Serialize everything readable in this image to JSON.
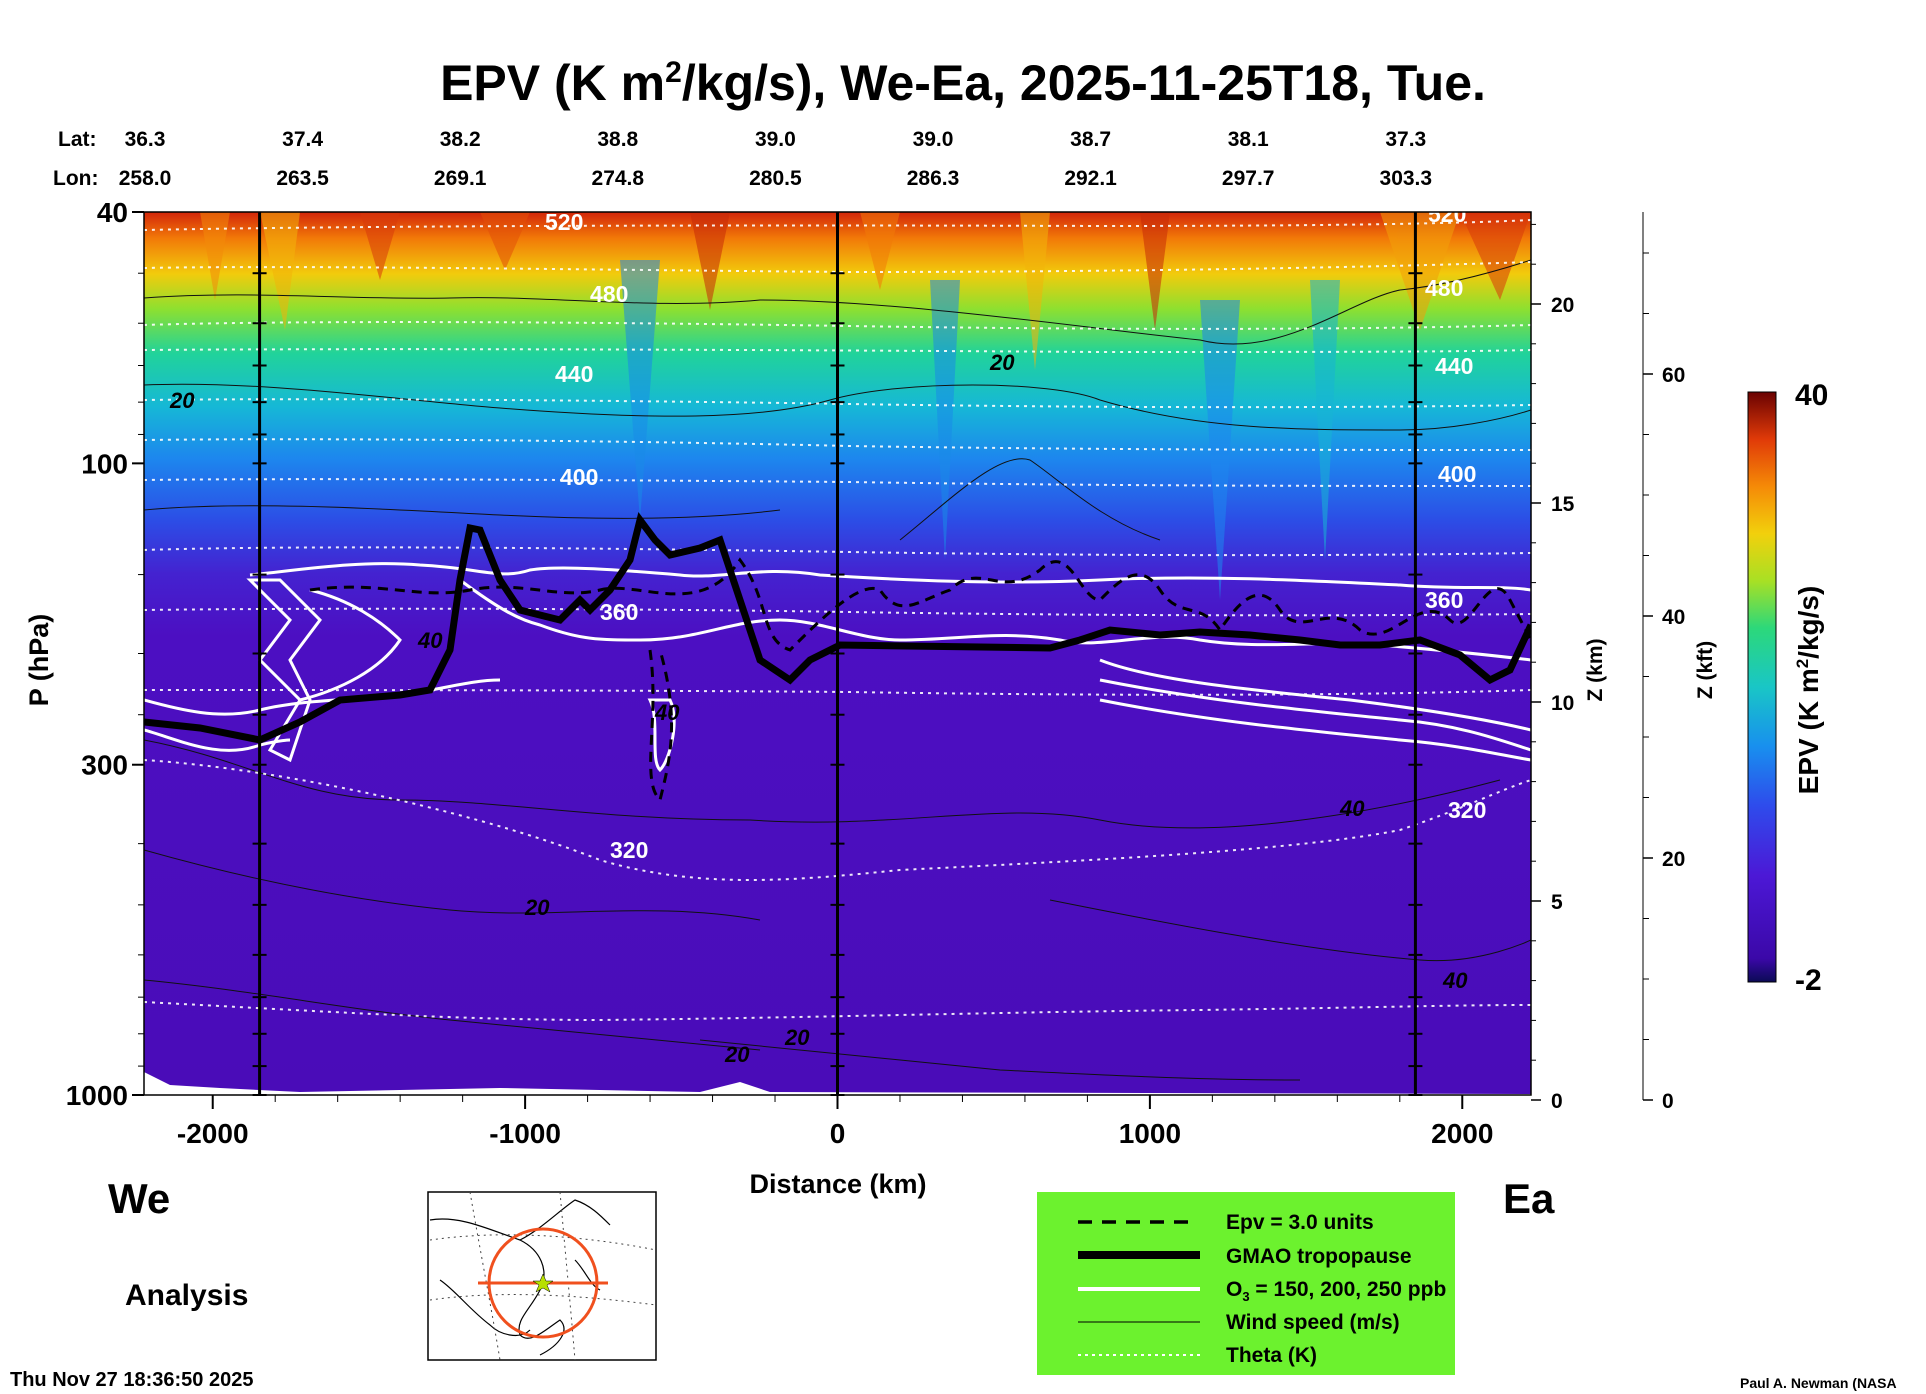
{
  "title": {
    "main": "EPV (K m",
    "sup": "2",
    "rest": "/kg/s), We-Ea, 2025-11-25T18, Tue."
  },
  "latlon": {
    "lat_label": "Lat:",
    "lon_label": "Lon:",
    "lat": [
      "36.3",
      "37.4",
      "38.2",
      "38.8",
      "39.0",
      "39.0",
      "38.7",
      "38.1",
      "37.3"
    ],
    "lon": [
      "258.0",
      "263.5",
      "269.1",
      "274.8",
      "280.5",
      "286.3",
      "292.1",
      "297.7",
      "303.3"
    ]
  },
  "left_label": "We",
  "right_label": "Ea",
  "analysis_label": "Analysis",
  "timestamp": "Thu Nov 27 18:36:50 2025",
  "credit": "Paul A. Newman (NASA",
  "legend": {
    "items": [
      {
        "label": "Epv = 3.0 units",
        "style": "dashed"
      },
      {
        "label": "GMAO tropopause",
        "style": "thick"
      },
      {
        "label_main": "O",
        "label_sub": "3",
        "label_rest": " = 150, 200, 250 ppb",
        "style": "white"
      },
      {
        "label": "Wind speed (m/s)",
        "style": "thin"
      },
      {
        "label": "Theta (K)",
        "style": "dotted"
      }
    ],
    "bg_color": "#6cf22e"
  },
  "colorbar": {
    "label": "EPV (K m",
    "label_sup": "2",
    "label_rest": "/kg/s)",
    "max_label": "40",
    "min_label": "-2"
  },
  "chart_data": {
    "type": "heatmap",
    "xlabel": "Distance (km)",
    "ylabel": "P (hPa)",
    "x_ticks": [
      "-2000",
      "-1000",
      "0",
      "1000",
      "2000"
    ],
    "y_ticks": [
      "40",
      "100",
      "300",
      "1000"
    ],
    "xlim": [
      -2220,
      2220
    ],
    "ylim_hpa": [
      1000,
      40
    ],
    "y_scale": "log",
    "z_km_label": "Z (km)",
    "z_km_ticks": [
      "0",
      "5",
      "10",
      "15",
      "20"
    ],
    "z_kft_label": "Z (kft)",
    "z_kft_ticks": [
      "0",
      "20",
      "40",
      "60"
    ],
    "colorscale_range": [
      -2,
      40
    ],
    "theta_contours_K": [
      "520",
      "480",
      "440",
      "400",
      "360",
      "320"
    ],
    "wind_contour_labels": [
      "20",
      "20",
      "40",
      "40",
      "20",
      "20",
      "20",
      "40"
    ],
    "ozone_contour_label": "40",
    "section_markers_km": [
      -1850,
      0,
      1850
    ],
    "colors": {
      "low": "#4a0db5",
      "mid": "#1ec8c8",
      "high": "#f5a800",
      "max": "#6b0000"
    }
  }
}
